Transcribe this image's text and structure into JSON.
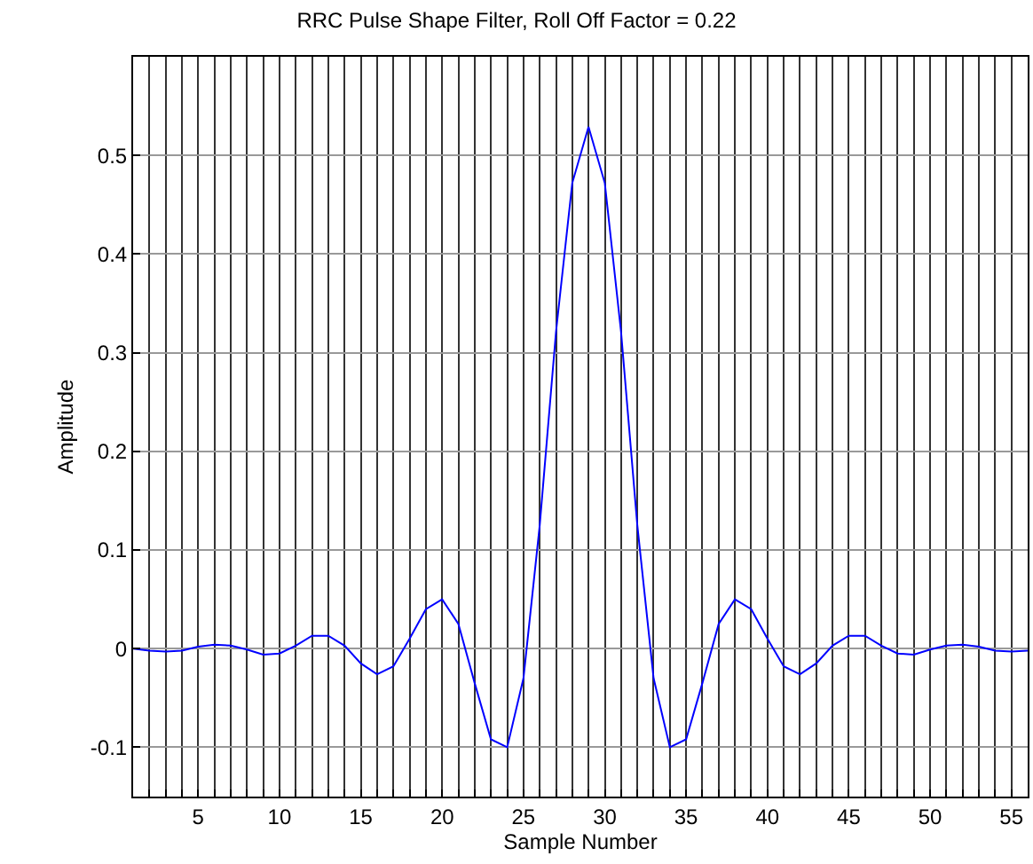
{
  "chart_data": {
    "type": "line",
    "title": "RRC Pulse Shape Filter, Roll Off Factor = 0.22",
    "xlabel": "Sample Number",
    "ylabel": "Amplitude",
    "x": [
      1,
      2,
      3,
      4,
      5,
      6,
      7,
      8,
      9,
      10,
      11,
      12,
      13,
      14,
      15,
      16,
      17,
      18,
      19,
      20,
      21,
      22,
      23,
      24,
      25,
      26,
      27,
      28,
      29,
      30,
      31,
      32,
      33,
      34,
      35,
      36,
      37,
      38,
      39,
      40,
      41,
      42,
      43,
      44,
      45,
      46,
      47,
      48,
      49,
      50,
      51,
      52,
      53,
      54,
      55,
      56
    ],
    "series": [
      {
        "color": "#0000ff",
        "values": [
          0.0,
          -0.002,
          -0.003,
          -0.002,
          0.002,
          0.004,
          0.003,
          -0.001,
          -0.006,
          -0.005,
          0.003,
          0.013,
          0.013,
          0.003,
          -0.015,
          -0.026,
          -0.018,
          0.01,
          0.04,
          0.05,
          0.025,
          -0.035,
          -0.092,
          -0.1,
          -0.03,
          0.125,
          0.321,
          0.472,
          0.529,
          0.472,
          0.321,
          0.125,
          -0.03,
          -0.1,
          -0.092,
          -0.035,
          0.025,
          0.05,
          0.04,
          0.01,
          -0.018,
          -0.026,
          -0.015,
          0.003,
          0.013,
          0.013,
          0.003,
          -0.005,
          -0.006,
          -0.001,
          0.003,
          0.004,
          0.002,
          -0.002,
          -0.003,
          -0.002
        ]
      }
    ],
    "xlim": [
      1,
      56
    ],
    "ylim": [
      -0.15,
      0.6
    ],
    "xticks": [
      {
        "value": 1,
        "label": null
      },
      {
        "value": 2,
        "label": null
      },
      {
        "value": 3,
        "label": null
      },
      {
        "value": 4,
        "label": null
      },
      5,
      {
        "value": 6,
        "label": null
      },
      {
        "value": 7,
        "label": null
      },
      {
        "value": 8,
        "label": null
      },
      {
        "value": 9,
        "label": null
      },
      10,
      {
        "value": 11,
        "label": null
      },
      {
        "value": 12,
        "label": null
      },
      {
        "value": 13,
        "label": null
      },
      {
        "value": 14,
        "label": null
      },
      15,
      {
        "value": 16,
        "label": null
      },
      {
        "value": 17,
        "label": null
      },
      {
        "value": 18,
        "label": null
      },
      {
        "value": 19,
        "label": null
      },
      20,
      {
        "value": 21,
        "label": null
      },
      {
        "value": 22,
        "label": null
      },
      {
        "value": 23,
        "label": null
      },
      {
        "value": 24,
        "label": null
      },
      25,
      {
        "value": 26,
        "label": null
      },
      {
        "value": 27,
        "label": null
      },
      {
        "value": 28,
        "label": null
      },
      {
        "value": 29,
        "label": null
      },
      30,
      {
        "value": 31,
        "label": null
      },
      {
        "value": 32,
        "label": null
      },
      {
        "value": 33,
        "label": null
      },
      {
        "value": 34,
        "label": null
      },
      35,
      {
        "value": 36,
        "label": null
      },
      {
        "value": 37,
        "label": null
      },
      {
        "value": 38,
        "label": null
      },
      {
        "value": 39,
        "label": null
      },
      40,
      {
        "value": 41,
        "label": null
      },
      {
        "value": 42,
        "label": null
      },
      {
        "value": 43,
        "label": null
      },
      {
        "value": 44,
        "label": null
      },
      45,
      {
        "value": 46,
        "label": null
      },
      {
        "value": 47,
        "label": null
      },
      {
        "value": 48,
        "label": null
      },
      {
        "value": 49,
        "label": null
      },
      50,
      {
        "value": 51,
        "label": null
      },
      {
        "value": 52,
        "label": null
      },
      {
        "value": 53,
        "label": null
      },
      {
        "value": 54,
        "label": null
      },
      55,
      {
        "value": 56,
        "label": null
      }
    ],
    "yticks": [
      -0.1,
      0,
      0.1,
      0.2,
      0.3,
      0.4,
      0.5
    ],
    "grid": true,
    "marker": "none",
    "line_style": "solid"
  }
}
